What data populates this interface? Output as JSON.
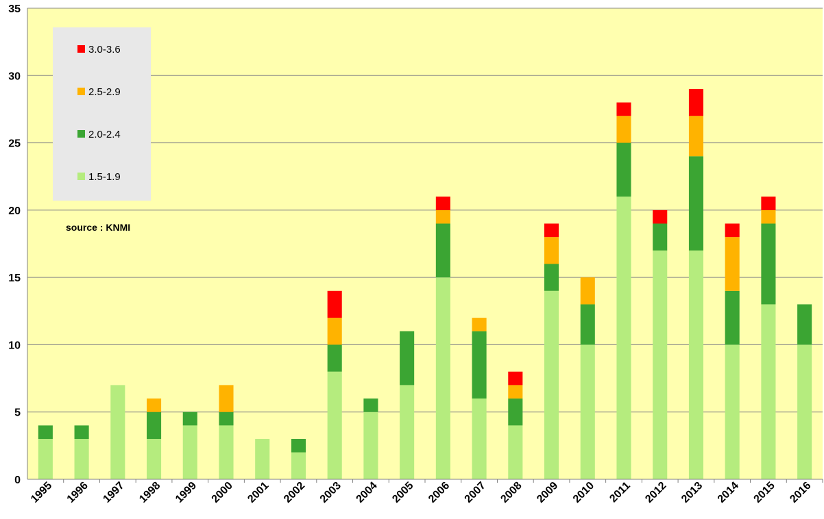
{
  "chart_data": {
    "type": "bar",
    "stacked": true,
    "categories": [
      "1995",
      "1996",
      "1997",
      "1998",
      "1999",
      "2000",
      "2001",
      "2002",
      "2003",
      "2004",
      "2005",
      "2006",
      "2007",
      "2008",
      "2009",
      "2010",
      "2011",
      "2012",
      "2013",
      "2014",
      "2015",
      "2016"
    ],
    "series": [
      {
        "name": "1.5-1.9",
        "color": "#b5ec7e",
        "values": [
          3,
          3,
          7,
          3,
          4,
          4,
          3,
          2,
          8,
          5,
          7,
          15,
          6,
          4,
          14,
          10,
          21,
          17,
          17,
          10,
          13,
          10
        ]
      },
      {
        "name": "2.0-2.4",
        "color": "#3ba533",
        "values": [
          1,
          1,
          0,
          2,
          1,
          1,
          0,
          1,
          2,
          1,
          4,
          4,
          5,
          2,
          2,
          3,
          4,
          2,
          7,
          4,
          6,
          3
        ]
      },
      {
        "name": "2.5-2.9",
        "color": "#ffb300",
        "values": [
          0,
          0,
          0,
          1,
          0,
          2,
          0,
          0,
          2,
          0,
          0,
          1,
          1,
          1,
          2,
          2,
          2,
          0,
          3,
          4,
          1,
          0
        ]
      },
      {
        "name": "3.0-3.6",
        "color": "#ff0000",
        "values": [
          0,
          0,
          0,
          0,
          0,
          0,
          0,
          0,
          2,
          0,
          0,
          1,
          0,
          1,
          1,
          0,
          1,
          1,
          2,
          1,
          1,
          0
        ]
      }
    ],
    "ylim": [
      0,
      35
    ],
    "yticks": [
      0,
      5,
      10,
      15,
      20,
      25,
      30,
      35
    ],
    "grid": true,
    "legend_position": "top-left",
    "legend_order": [
      "3.0-3.6",
      "2.5-2.9",
      "2.0-2.4",
      "1.5-1.9"
    ],
    "annotation": "source : KNMI",
    "plot_background": "#ffffaf",
    "legend_background": "#e8e8e8"
  }
}
